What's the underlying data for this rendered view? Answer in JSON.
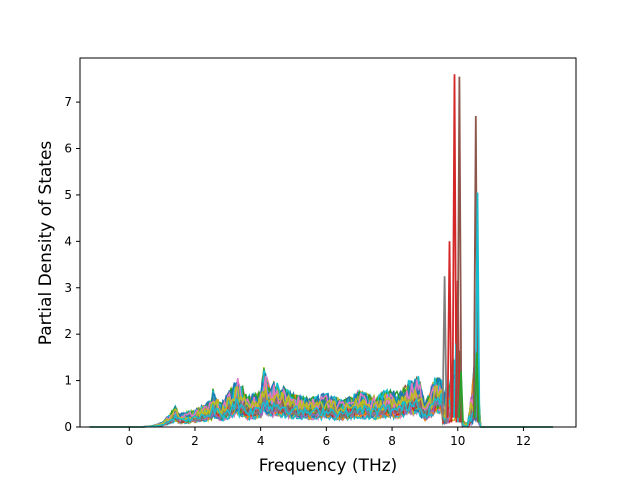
{
  "chart_data": {
    "type": "line",
    "title": "",
    "xlabel": "Frequency (THz)",
    "ylabel": "Partial Density of States",
    "xlim": [
      -1.5,
      13.6
    ],
    "ylim": [
      0,
      7.95
    ],
    "xticks": [
      0,
      2,
      4,
      6,
      8,
      10,
      12
    ],
    "yticks": [
      0,
      1,
      2,
      3,
      4,
      5,
      6,
      7
    ],
    "grid": false,
    "legend": "none",
    "domain": [
      -1.2,
      12.9
    ],
    "colors": [
      "#1f77b4",
      "#ff7f0e",
      "#2ca02c",
      "#d62728",
      "#9467bd",
      "#8c564b",
      "#e377c2",
      "#7f7f7f",
      "#bcbd22",
      "#17becf"
    ],
    "envelope": [
      [
        -1.2,
        0
      ],
      [
        0.3,
        0.0
      ],
      [
        0.7,
        0.03
      ],
      [
        1.0,
        0.12
      ],
      [
        1.25,
        0.35
      ],
      [
        1.4,
        0.55
      ],
      [
        1.55,
        0.35
      ],
      [
        2.0,
        0.45
      ],
      [
        2.5,
        0.7
      ],
      [
        2.55,
        1.03
      ],
      [
        2.8,
        0.6
      ],
      [
        3.3,
        1.3
      ],
      [
        3.6,
        0.8
      ],
      [
        4.0,
        0.95
      ],
      [
        4.1,
        1.58
      ],
      [
        4.3,
        1.0
      ],
      [
        4.4,
        1.2
      ],
      [
        5.0,
        0.9
      ],
      [
        5.5,
        0.75
      ],
      [
        6.0,
        0.9
      ],
      [
        6.5,
        0.7
      ],
      [
        7.0,
        0.95
      ],
      [
        7.5,
        0.8
      ],
      [
        7.8,
        1.0
      ],
      [
        8.2,
        0.9
      ],
      [
        8.5,
        1.2
      ],
      [
        8.8,
        1.35
      ],
      [
        9.0,
        0.6
      ],
      [
        9.3,
        1.3
      ],
      [
        9.5,
        1.42
      ],
      [
        9.6,
        3.25
      ],
      [
        9.75,
        4.0
      ],
      [
        9.9,
        7.6
      ],
      [
        10.05,
        7.55
      ],
      [
        10.15,
        0.6
      ],
      [
        10.3,
        0.3
      ],
      [
        10.55,
        6.7
      ],
      [
        10.7,
        0.0
      ],
      [
        12.9,
        0
      ]
    ],
    "peaks": [
      {
        "x": 9.6,
        "y": 3.25,
        "series": 7
      },
      {
        "x": 9.75,
        "y": 4.0,
        "series": 3
      },
      {
        "x": 9.9,
        "y": 7.6,
        "series": 3
      },
      {
        "x": 9.95,
        "y": 1.8,
        "series": 9
      },
      {
        "x": 10.0,
        "y": 3.15,
        "series": 3
      },
      {
        "x": 10.05,
        "y": 7.55,
        "series": 5
      },
      {
        "x": 10.1,
        "y": 1.2,
        "series": 2
      },
      {
        "x": 10.55,
        "y": 6.7,
        "series": 5
      },
      {
        "x": 10.6,
        "y": 5.05,
        "series": 9
      },
      {
        "x": 10.58,
        "y": 1.6,
        "series": 2
      }
    ]
  }
}
